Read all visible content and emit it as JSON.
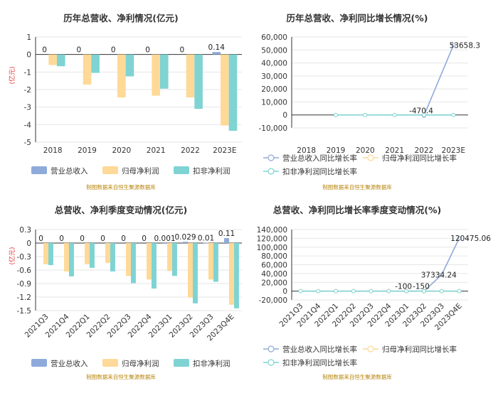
{
  "colors": {
    "revenue": "#8eaadb",
    "parent_profit": "#ffd997",
    "deducted_profit": "#7fd3d3",
    "axis": "#333333",
    "grid": "#e6e6e6",
    "source": "#b8860b",
    "unit": "#e03030"
  },
  "source_text": "制图数据来自恒生聚源数据库",
  "chart_data": [
    {
      "id": "annual-value",
      "type": "bar",
      "title": "历年总营收、净利情况(亿元)",
      "ylabel": "(亿元)",
      "ylim": [
        -5,
        1
      ],
      "yticks": [
        -5,
        -4,
        -3,
        -2,
        -1,
        0,
        1
      ],
      "categories": [
        "2018",
        "2019",
        "2020",
        "2021",
        "2022",
        "2023E"
      ],
      "series": [
        {
          "name": "营业总收入",
          "color_key": "revenue",
          "values": [
            0,
            0,
            0,
            0,
            0,
            0.14
          ],
          "labels": [
            "0",
            "0",
            "0",
            "0",
            "0",
            "0.14"
          ]
        },
        {
          "name": "归母净利润",
          "color_key": "parent_profit",
          "values": [
            -0.6,
            -1.72,
            -2.45,
            -2.35,
            -2.45,
            -4.05
          ]
        },
        {
          "name": "扣非净利润",
          "color_key": "deducted_profit",
          "values": [
            -0.67,
            -1.05,
            -1.25,
            -1.95,
            -3.1,
            -4.35
          ]
        }
      ],
      "legend": "bottom"
    },
    {
      "id": "annual-growth",
      "type": "line",
      "title": "历年总营收、净利同比增长情况(%)",
      "ylim": [
        -10000,
        60000
      ],
      "yticks": [
        -10000,
        0,
        10000,
        20000,
        30000,
        40000,
        50000,
        60000
      ],
      "ytick_labels": [
        "-10,000",
        "0",
        "10,000",
        "20,000",
        "30,000",
        "40,000",
        "50,000",
        "60,000"
      ],
      "categories": [
        "2018",
        "2019",
        "2020",
        "2021",
        "2022",
        "2023E"
      ],
      "series": [
        {
          "name": "营业总收入同比增长率",
          "color_key": "revenue",
          "values": [
            null,
            null,
            null,
            null,
            -470.4,
            53658.3
          ],
          "labels": [
            null,
            null,
            null,
            null,
            "-470.4",
            "53658.3"
          ]
        },
        {
          "name": "归母净利润同比增长率",
          "color_key": "parent_profit",
          "values": [
            null,
            null,
            null,
            null,
            null,
            null
          ]
        },
        {
          "name": "扣非净利润同比增长率",
          "color_key": "deducted_profit",
          "values": [
            null,
            -56.7,
            -19.0,
            -56.0,
            -59.0,
            -40.3
          ]
        }
      ],
      "legend": "bottom"
    },
    {
      "id": "quarterly-value",
      "type": "bar",
      "title": "总营收、净利季度变动情况(亿元)",
      "ylabel": "(亿元)",
      "ylim": [
        -1.5,
        0.3
      ],
      "yticks": [
        -1.5,
        -1.2,
        -0.9,
        -0.6,
        -0.3,
        0,
        0.3
      ],
      "ytick_labels": [
        "-1.5",
        "-1.2",
        "-0.9",
        "-0.6",
        "-0.3",
        "0",
        "0.3"
      ],
      "categories": [
        "2021Q3",
        "2021Q4",
        "2022Q1",
        "2022Q2",
        "2022Q3",
        "2022Q4",
        "2023Q1",
        "2023Q2",
        "2023Q3",
        "2023Q4E"
      ],
      "series": [
        {
          "name": "营业总收入",
          "color_key": "revenue",
          "values": [
            0,
            0,
            0,
            0,
            0,
            0,
            0.001,
            0.029,
            0.01,
            0.11
          ],
          "labels": [
            "0",
            "0",
            "0",
            "0",
            "0",
            "0",
            "0.001",
            "0.029",
            "0.01",
            "0.11"
          ]
        },
        {
          "name": "归母净利润",
          "color_key": "parent_profit",
          "values": [
            -0.47,
            -0.63,
            -0.47,
            -0.44,
            -0.73,
            -0.81,
            -0.62,
            -1.21,
            -0.81,
            -1.37
          ]
        },
        {
          "name": "扣非净利润",
          "color_key": "deducted_profit",
          "values": [
            -0.49,
            -0.74,
            -0.55,
            -0.63,
            -0.89,
            -1.01,
            -0.73,
            -1.34,
            -0.86,
            -1.45
          ]
        }
      ],
      "legend": "bottom"
    },
    {
      "id": "quarterly-growth",
      "type": "line",
      "title": "总营收、净利同比增长率季度变动情况(%)",
      "ylim": [
        -20000,
        140000
      ],
      "yticks": [
        -20000,
        0,
        20000,
        40000,
        60000,
        80000,
        100000,
        120000,
        140000
      ],
      "ytick_labels": [
        "-20,000",
        "0",
        "20,000",
        "40,000",
        "60,000",
        "80,000",
        "100,000",
        "120,000",
        "140,000"
      ],
      "categories": [
        "2021Q3",
        "2021Q4",
        "2022Q1",
        "2022Q2",
        "2022Q3",
        "2022Q4",
        "2023Q1",
        "2023Q2",
        "2023Q3",
        "2023Q4E"
      ],
      "series": [
        {
          "name": "营业总收入同比增长率",
          "color_key": "revenue",
          "values": [
            null,
            null,
            null,
            null,
            null,
            null,
            -100,
            -150,
            37334.24,
            120475.06
          ],
          "labels": [
            null,
            null,
            null,
            null,
            null,
            null,
            "-100",
            "-150",
            "37334.24",
            "120475.06"
          ]
        },
        {
          "name": "归母净利润同比增长率",
          "color_key": "parent_profit",
          "values": [
            -40,
            -50,
            -50,
            -45,
            -55,
            -30,
            -32,
            -150,
            -12,
            -70
          ]
        },
        {
          "name": "扣非净利润同比增长率",
          "color_key": "deducted_profit",
          "values": [
            -45,
            -80,
            -60,
            -80,
            -60,
            -40,
            -30,
            -120,
            -10,
            -70
          ]
        }
      ],
      "legend": "bottom"
    }
  ]
}
